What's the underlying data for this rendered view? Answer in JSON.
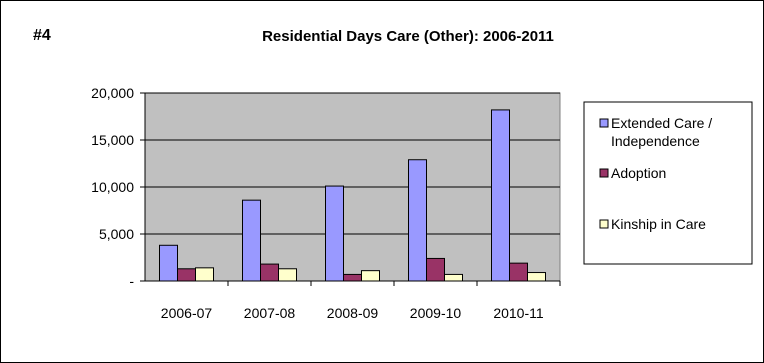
{
  "chart_data": {
    "type": "bar",
    "label": "#4",
    "title": "Residential Days Care (Other): 2006-2011",
    "categories": [
      "2006-07",
      "2007-08",
      "2008-09",
      "2009-10",
      "2010-11"
    ],
    "ylim": [
      0,
      20000
    ],
    "yticks": [
      "-",
      "5,000",
      "10,000",
      "15,000",
      "20,000"
    ],
    "ytick_values": [
      0,
      5000,
      10000,
      15000,
      20000
    ],
    "grid": true,
    "legend_position": "right",
    "series": [
      {
        "name": "Extended Care / Independence",
        "legend_lines": [
          "Extended Care /",
          "Independence"
        ],
        "color": "#9999ff",
        "values": [
          3800,
          8600,
          10100,
          12900,
          18200
        ]
      },
      {
        "name": "Adoption",
        "legend_lines": [
          "Adoption"
        ],
        "color": "#993366",
        "values": [
          1300,
          1800,
          700,
          2400,
          1900
        ]
      },
      {
        "name": "Kinship in Care",
        "legend_lines": [
          "Kinship in Care"
        ],
        "color": "#ffffcc",
        "values": [
          1400,
          1300,
          1100,
          700,
          900
        ]
      }
    ],
    "plot_background": "#c0c0c0"
  }
}
